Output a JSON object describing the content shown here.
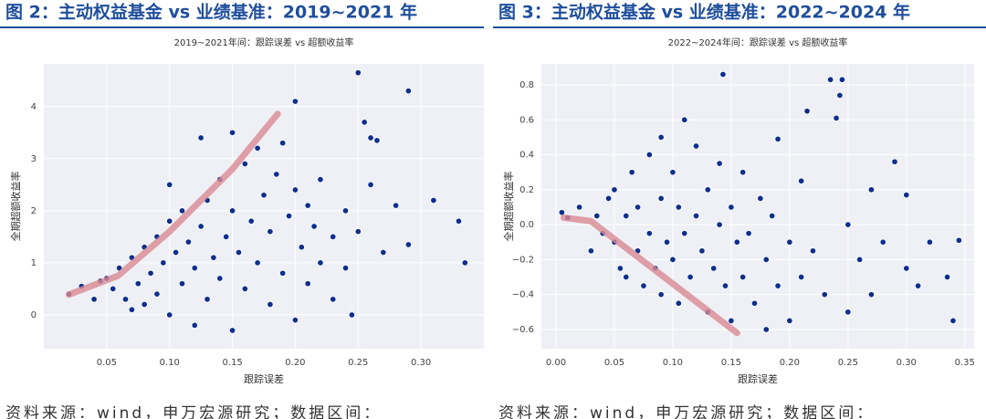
{
  "chart_data": [
    {
      "type": "scatter",
      "figure_title": "图 2：主动权益基金 vs 业绩基准：2019~2021 年",
      "title": "2019~2021年间：跟踪误差 vs 超额收益率",
      "xlabel": "跟踪误差",
      "ylabel": "全期超额收益率",
      "source": "资料来源：wind，申万宏源研究；数据区间：",
      "color": "#0d2f8c",
      "grid": true,
      "xlim": [
        0,
        0.35
      ],
      "ylim": [
        -0.65,
        4.82
      ],
      "xticks": [
        0.05,
        {
          "value": 0.1,
          "label": "0.10"
        },
        0.15,
        {
          "value": 0.2,
          "label": "0.20"
        },
        0.25,
        {
          "value": 0.3,
          "label": "0.30"
        }
      ],
      "yticks": [
        0,
        1,
        2,
        3,
        4
      ],
      "x": [
        0.02,
        0.03,
        0.04,
        0.045,
        0.05,
        0.055,
        0.06,
        0.065,
        0.07,
        0.07,
        0.075,
        0.08,
        0.08,
        0.085,
        0.09,
        0.09,
        0.095,
        0.1,
        0.1,
        0.1,
        0.105,
        0.11,
        0.11,
        0.115,
        0.12,
        0.12,
        0.125,
        0.125,
        0.13,
        0.13,
        0.135,
        0.14,
        0.14,
        0.145,
        0.15,
        0.15,
        0.15,
        0.155,
        0.16,
        0.16,
        0.165,
        0.17,
        0.17,
        0.175,
        0.18,
        0.18,
        0.185,
        0.19,
        0.19,
        0.195,
        0.2,
        0.2,
        0.2,
        0.205,
        0.21,
        0.21,
        0.215,
        0.22,
        0.22,
        0.23,
        0.23,
        0.24,
        0.24,
        0.245,
        0.25,
        0.25,
        0.255,
        0.26,
        0.26,
        0.265,
        0.27,
        0.28,
        0.29,
        0.29,
        0.31,
        0.33,
        0.335
      ],
      "values": [
        0.4,
        0.55,
        0.3,
        0.65,
        0.7,
        0.5,
        0.9,
        0.3,
        0.1,
        1.1,
        0.6,
        1.3,
        0.2,
        0.8,
        1.5,
        0.4,
        1.0,
        2.5,
        1.8,
        0.0,
        1.2,
        0.6,
        2.0,
        1.4,
        0.9,
        -0.2,
        3.4,
        1.7,
        2.2,
        0.3,
        1.1,
        2.6,
        0.7,
        1.5,
        3.5,
        2.0,
        -0.3,
        1.2,
        2.9,
        0.5,
        1.8,
        3.2,
        1.0,
        2.3,
        0.2,
        1.6,
        2.7,
        3.3,
        0.8,
        1.9,
        4.1,
        2.4,
        -0.1,
        1.3,
        2.1,
        0.6,
        1.7,
        2.6,
        1.0,
        1.5,
        0.3,
        2.0,
        0.9,
        0.0,
        4.65,
        1.6,
        3.7,
        3.4,
        2.5,
        3.35,
        1.2,
        2.1,
        4.3,
        1.35,
        2.2,
        1.8,
        1.0
      ],
      "trend": {
        "color": "#d98a93",
        "x": [
          0.02,
          0.059,
          0.1,
          0.15,
          0.186
        ],
        "y": [
          0.39,
          0.75,
          1.6,
          2.8,
          3.86
        ]
      }
    },
    {
      "type": "scatter",
      "figure_title": "图 3：主动权益基金 vs 业绩基准：2022~2024 年",
      "title": "2022~2024年间：跟踪误差 vs 超额收益率",
      "xlabel": "跟踪误差",
      "ylabel": "全期超额收益率",
      "source": "资料来源：wind，申万宏源研究；数据区间：",
      "color": "#0d2f8c",
      "grid": true,
      "xlim": [
        -0.0125,
        0.358
      ],
      "ylim": [
        -0.71,
        0.92
      ],
      "xticks": [
        {
          "value": 0,
          "label": "0.00"
        },
        0.05,
        {
          "value": 0.1,
          "label": "0.10"
        },
        0.15,
        {
          "value": 0.2,
          "label": "0.20"
        },
        0.25,
        {
          "value": 0.3,
          "label": "0.30"
        },
        0.35
      ],
      "yticks": [
        {
          "value": -0.6,
          "label": "−0.6"
        },
        {
          "value": -0.4,
          "label": "−0.4"
        },
        {
          "value": -0.2,
          "label": "−0.2"
        },
        {
          "value": 0,
          "label": "0.0"
        },
        0.2,
        0.4,
        0.6,
        0.8
      ],
      "x": [
        0.005,
        0.01,
        0.02,
        0.03,
        0.035,
        0.04,
        0.045,
        0.05,
        0.05,
        0.055,
        0.06,
        0.06,
        0.065,
        0.07,
        0.07,
        0.075,
        0.08,
        0.08,
        0.085,
        0.09,
        0.09,
        0.09,
        0.095,
        0.1,
        0.1,
        0.105,
        0.105,
        0.11,
        0.11,
        0.115,
        0.12,
        0.12,
        0.125,
        0.13,
        0.13,
        0.135,
        0.14,
        0.14,
        0.143,
        0.145,
        0.15,
        0.15,
        0.155,
        0.16,
        0.16,
        0.165,
        0.17,
        0.175,
        0.18,
        0.18,
        0.185,
        0.19,
        0.19,
        0.2,
        0.2,
        0.21,
        0.21,
        0.215,
        0.22,
        0.23,
        0.235,
        0.24,
        0.243,
        0.245,
        0.25,
        0.25,
        0.26,
        0.27,
        0.27,
        0.28,
        0.29,
        0.3,
        0.3,
        0.31,
        0.32,
        0.335,
        0.34,
        0.345
      ],
      "values": [
        0.07,
        0.04,
        0.1,
        -0.15,
        0.05,
        -0.05,
        0.15,
        -0.1,
        0.2,
        -0.25,
        0.05,
        -0.3,
        0.3,
        -0.15,
        0.1,
        -0.35,
        0.4,
        -0.05,
        -0.25,
        0.5,
        0.15,
        -0.4,
        -0.1,
        0.3,
        -0.2,
        0.1,
        -0.45,
        0.6,
        -0.05,
        -0.3,
        0.45,
        0.05,
        -0.15,
        0.2,
        -0.5,
        -0.25,
        0.35,
        0.0,
        0.86,
        -0.35,
        0.1,
        -0.55,
        -0.1,
        0.3,
        -0.3,
        -0.05,
        -0.45,
        0.15,
        -0.2,
        -0.6,
        0.05,
        0.49,
        -0.35,
        -0.1,
        -0.55,
        0.25,
        -0.3,
        0.65,
        -0.15,
        -0.4,
        0.83,
        0.61,
        0.74,
        0.83,
        0.0,
        -0.5,
        -0.2,
        0.2,
        -0.4,
        -0.1,
        0.36,
        0.17,
        -0.25,
        -0.35,
        -0.1,
        -0.3,
        -0.55,
        -0.09
      ],
      "trend": {
        "color": "#d98a93",
        "x": [
          0.0067,
          0.03,
          0.155
        ],
        "y": [
          0.04,
          0.02,
          -0.62
        ]
      }
    }
  ]
}
